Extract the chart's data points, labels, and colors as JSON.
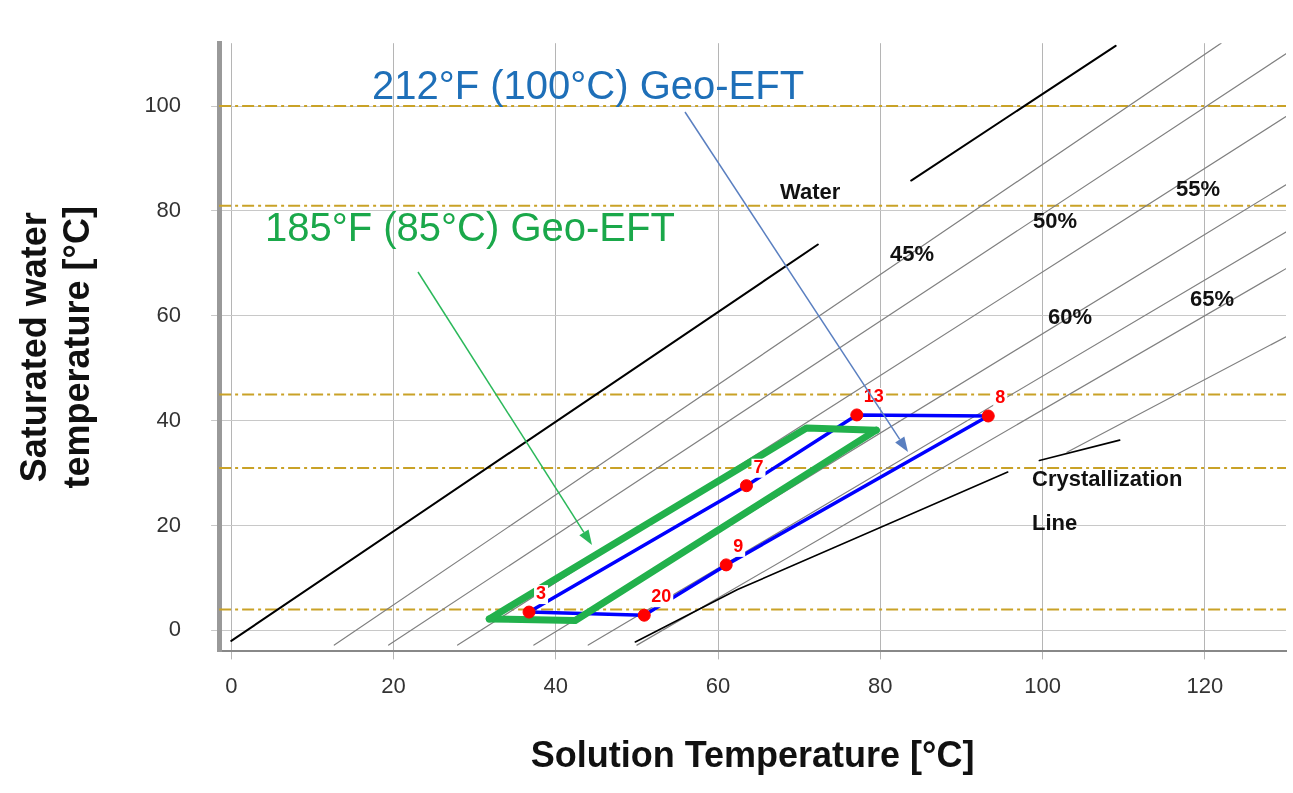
{
  "chart_data": {
    "type": "line",
    "xlabel": "Solution Temperature [°C]",
    "ylabel": "Saturated water temperature [°C]",
    "xlim": [
      -1.5,
      130
    ],
    "xticks": [
      0,
      20,
      40,
      60,
      80,
      100,
      120
    ],
    "ylim": [
      -4,
      112
    ],
    "yticks": [
      0,
      20,
      40,
      60,
      80,
      100
    ],
    "grid": true,
    "legend": false,
    "line_style": "solid",
    "series": [
      {
        "name": "Water",
        "color": "#000000",
        "x": [
          0,
          72.3,
          78,
          83.8,
          109
        ],
        "values": [
          -2,
          73.6,
          null,
          85.8,
          111.5
        ]
      },
      {
        "name": "45%",
        "color": "#808080",
        "x": [
          12.7,
          122
        ],
        "values": [
          -2.8,
          112
        ]
      },
      {
        "name": "50%",
        "color": "#808080",
        "x": [
          19.4,
          130
        ],
        "values": [
          -2.8,
          110
        ]
      },
      {
        "name": "55%",
        "color": "#808080",
        "x": [
          27.9,
          130
        ],
        "values": [
          -2.8,
          98
        ]
      },
      {
        "name": "60%",
        "color": "#808080",
        "x": [
          37.3,
          130
        ],
        "values": [
          -2.8,
          85
        ]
      },
      {
        "name": "65%",
        "color": "#808080",
        "x": [
          50,
          130
        ],
        "values": [
          -2.8,
          69
        ]
      },
      {
        "color": "#808080",
        "x": [
          44,
          130
        ],
        "values": [
          -2.8,
          76
        ]
      },
      {
        "color": "#808080",
        "x": [
          103,
          130
        ],
        "values": [
          34,
          56
        ]
      },
      {
        "name": "Crystallization Line",
        "color": "#000000",
        "x": [
          49.8,
          62.4,
          95.7,
          97.5,
          99.6,
          109.5
        ],
        "values": [
          -2.2,
          7.8,
          30.2,
          null,
          32.4,
          36.3
        ]
      },
      {
        "color": "#0000ff",
        "x": [
          36.7,
          50.9,
          61,
          93.3
        ],
        "values": [
          3.5,
          2.9,
          12.5,
          40.9
        ]
      },
      {
        "color": "#0000ff",
        "x": [
          36.7,
          63.5,
          77.1,
          93.3
        ],
        "values": [
          3.5,
          27.6,
          41.1,
          40.9
        ]
      },
      {
        "color": "#22b14c",
        "x": [
          31.8,
          42.4,
          79.5
        ],
        "values": [
          2.2,
          1.9,
          38.2
        ]
      },
      {
        "color": "#22b14c",
        "x": [
          31.8,
          70.9,
          79.5
        ],
        "values": [
          2.2,
          38.6,
          38.2
        ]
      },
      {
        "type": "scatter",
        "color": "#ff0000",
        "x": [
          36.7,
          50.9,
          61,
          93.3,
          77.1,
          63.5
        ],
        "values": [
          3.5,
          2.9,
          12.5,
          40.9,
          41.1,
          27.6
        ]
      }
    ],
    "ref_lines": [
      {
        "axis": "y",
        "value": 100,
        "color": "#c9a227",
        "line_style": "dashed"
      },
      {
        "axis": "y",
        "value": 81,
        "color": "#c9a227",
        "line_style": "dashed"
      },
      {
        "axis": "y",
        "value": 45,
        "color": "#c9a227",
        "line_style": "dashed"
      },
      {
        "axis": "y",
        "value": 31,
        "color": "#c9a227",
        "line_style": "dashed"
      },
      {
        "axis": "y",
        "value": 4,
        "color": "#c9a227",
        "line_style": "dashed"
      }
    ],
    "annotations": [
      "212°F (100°C) Geo-EFT",
      "185°F (85°C) Geo-EFT",
      {
        "text": "3",
        "x": 36.7,
        "y": 3.5
      },
      {
        "text": "20",
        "x": 50.9,
        "y": 2.9
      },
      {
        "text": "9",
        "x": 61,
        "y": 12.5
      },
      {
        "text": "8",
        "x": 93.3,
        "y": 40.9
      },
      {
        "text": "13",
        "x": 77.1,
        "y": 41.1
      },
      {
        "text": "7",
        "x": 63.5,
        "y": 27.6
      }
    ]
  }
}
